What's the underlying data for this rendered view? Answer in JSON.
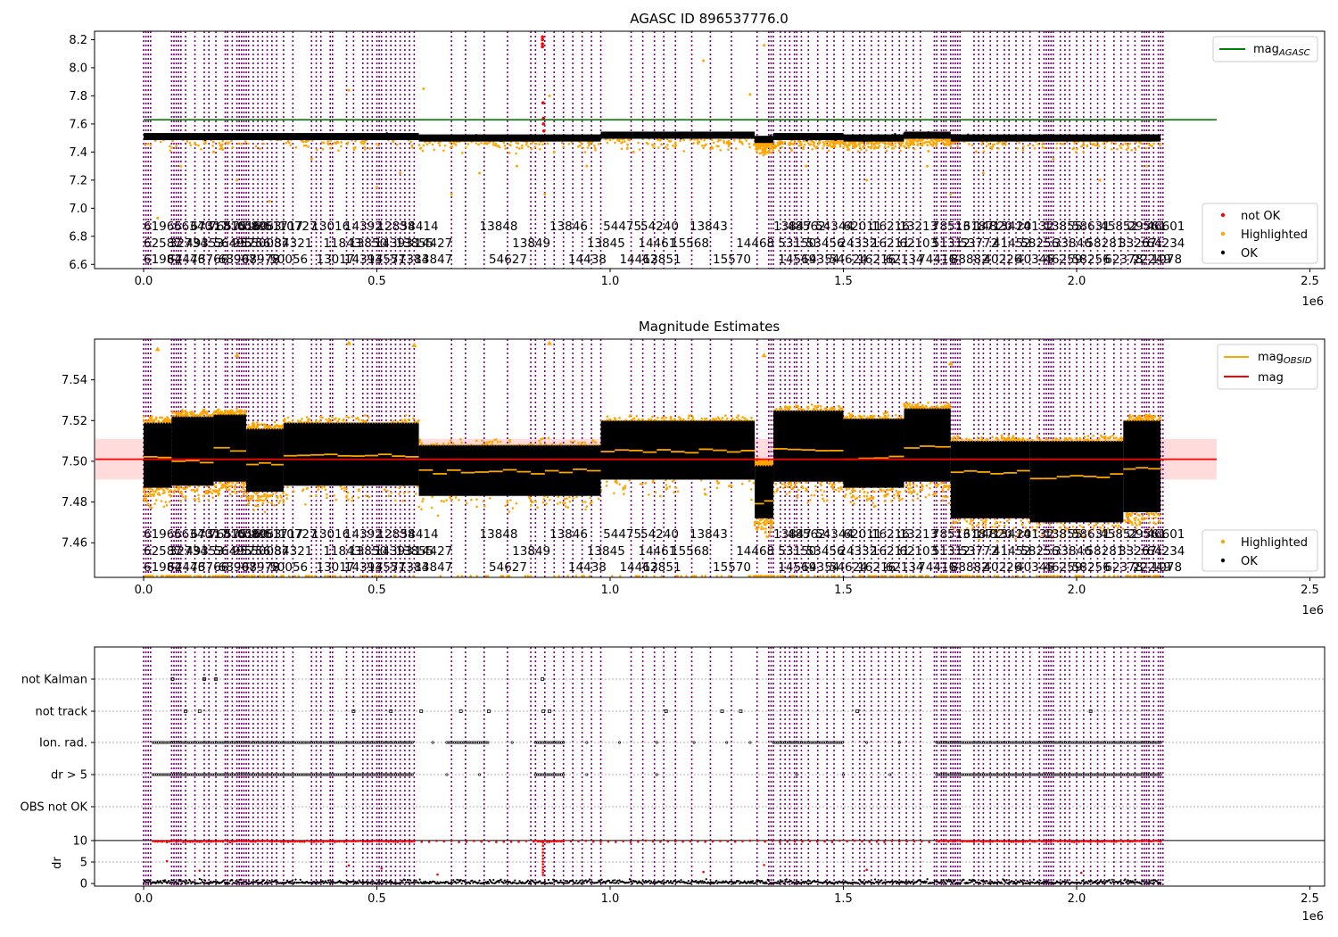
{
  "figure": {
    "colors": {
      "obs_line": "#800080",
      "not_ok": "#ff0000",
      "highlighted": "#ffa500",
      "ok": "#000000",
      "agasc_line": "#008000",
      "mag_line": "#ff0000",
      "mag_obsid_line": "#ffa500",
      "band_fill": "#ffcccc"
    },
    "obs_lines_x": [
      0.0,
      0.005,
      0.01,
      0.015,
      0.06,
      0.065,
      0.07,
      0.075,
      0.08,
      0.09,
      0.11,
      0.13,
      0.14,
      0.155,
      0.175,
      0.18,
      0.19,
      0.2,
      0.205,
      0.21,
      0.215,
      0.22,
      0.225,
      0.235,
      0.245,
      0.255,
      0.265,
      0.275,
      0.285,
      0.3,
      0.32,
      0.36,
      0.37,
      0.38,
      0.4,
      0.405,
      0.435,
      0.45,
      0.47,
      0.48,
      0.49,
      0.5,
      0.505,
      0.51,
      0.52,
      0.53,
      0.54,
      0.55,
      0.56,
      0.57,
      0.58,
      0.66,
      0.69,
      0.73,
      0.78,
      0.83,
      0.84,
      0.86,
      0.88,
      0.9,
      0.92,
      0.94,
      0.96,
      0.98,
      1.045,
      1.07,
      1.095,
      1.115,
      1.14,
      1.175,
      1.215,
      1.26,
      1.315,
      1.34,
      1.345,
      1.35,
      1.365,
      1.375,
      1.385,
      1.395,
      1.4,
      1.41,
      1.425,
      1.445,
      1.465,
      1.48,
      1.5,
      1.52,
      1.535,
      1.545,
      1.56,
      1.575,
      1.59,
      1.605,
      1.62,
      1.635,
      1.65,
      1.665,
      1.695,
      1.7,
      1.71,
      1.715,
      1.72,
      1.73,
      1.735,
      1.74,
      1.745,
      1.75,
      1.78,
      1.79,
      1.8,
      1.815,
      1.83,
      1.845,
      1.855,
      1.87,
      1.885,
      1.9,
      1.92,
      1.93,
      1.935,
      1.94,
      1.945,
      1.95,
      1.965,
      1.975,
      1.985,
      2.0,
      2.015,
      2.03,
      2.045,
      2.06,
      2.08,
      2.095,
      2.11,
      2.125,
      2.14,
      2.145,
      2.15,
      2.155,
      2.165,
      2.175,
      2.18,
      2.185
    ]
  },
  "obs_labels": {
    "row1": [
      {
        "x": 0.0,
        "t": "61965"
      },
      {
        "x": 0.065,
        "t": "66340"
      },
      {
        "x": 0.1,
        "t": "67317"
      },
      {
        "x": 0.14,
        "t": "76575"
      },
      {
        "x": 0.17,
        "t": "81016"
      },
      {
        "x": 0.2,
        "t": "6560"
      },
      {
        "x": 0.23,
        "t": "8963"
      },
      {
        "x": 0.26,
        "t": "51717"
      },
      {
        "x": 0.29,
        "t": "10727"
      },
      {
        "x": 0.36,
        "t": "13016"
      },
      {
        "x": 0.43,
        "t": "14392"
      },
      {
        "x": 0.5,
        "t": "12838"
      },
      {
        "x": 0.55,
        "t": "54414"
      },
      {
        "x": 0.72,
        "t": "13848"
      },
      {
        "x": 0.87,
        "t": "13846"
      },
      {
        "x": 0.985,
        "t": "54475"
      },
      {
        "x": 1.065,
        "t": "54240"
      },
      {
        "x": 1.17,
        "t": "13843"
      },
      {
        "x": 1.35,
        "t": "13847"
      },
      {
        "x": 1.38,
        "t": "48562"
      },
      {
        "x": 1.44,
        "t": "54344"
      },
      {
        "x": 1.5,
        "t": "62011"
      },
      {
        "x": 1.56,
        "t": "16216"
      },
      {
        "x": 1.62,
        "t": "13213"
      },
      {
        "x": 1.69,
        "t": "78513"
      },
      {
        "x": 1.74,
        "t": "16187"
      },
      {
        "x": 1.78,
        "t": "14820"
      },
      {
        "x": 1.82,
        "t": "13414"
      },
      {
        "x": 1.87,
        "t": "20132"
      },
      {
        "x": 1.93,
        "t": "13855"
      },
      {
        "x": 1.99,
        "t": "58631"
      },
      {
        "x": 2.05,
        "t": "45852"
      },
      {
        "x": 2.11,
        "t": "29561"
      },
      {
        "x": 2.15,
        "t": "46601"
      }
    ],
    "row2": [
      {
        "x": 0.0,
        "t": "62587"
      },
      {
        "x": 0.055,
        "t": "32734"
      },
      {
        "x": 0.09,
        "t": "49353"
      },
      {
        "x": 0.15,
        "t": "56495"
      },
      {
        "x": 0.19,
        "t": "95756"
      },
      {
        "x": 0.23,
        "t": "50087"
      },
      {
        "x": 0.28,
        "t": "34321"
      },
      {
        "x": 0.385,
        "t": "11843"
      },
      {
        "x": 0.44,
        "t": "13850"
      },
      {
        "x": 0.495,
        "t": "14393"
      },
      {
        "x": 0.54,
        "t": "13855"
      },
      {
        "x": 0.58,
        "t": "14427"
      },
      {
        "x": 0.79,
        "t": "13849"
      },
      {
        "x": 0.95,
        "t": "13845"
      },
      {
        "x": 1.06,
        "t": "14461"
      },
      {
        "x": 1.13,
        "t": "15568"
      },
      {
        "x": 1.27,
        "t": "14468"
      },
      {
        "x": 1.36,
        "t": "53150"
      },
      {
        "x": 1.42,
        "t": "53456"
      },
      {
        "x": 1.49,
        "t": "24332"
      },
      {
        "x": 1.56,
        "t": "16211"
      },
      {
        "x": 1.62,
        "t": "62103"
      },
      {
        "x": 1.69,
        "t": "51312"
      },
      {
        "x": 1.75,
        "t": "53772"
      },
      {
        "x": 1.82,
        "t": "41452"
      },
      {
        "x": 1.88,
        "t": "58256"
      },
      {
        "x": 1.95,
        "t": "33846"
      },
      {
        "x": 2.02,
        "t": "58281"
      },
      {
        "x": 2.09,
        "t": "33267"
      },
      {
        "x": 2.15,
        "t": "64234"
      }
    ],
    "row3": [
      {
        "x": 0.0,
        "t": "61984"
      },
      {
        "x": 0.05,
        "t": "62446"
      },
      {
        "x": 0.1,
        "t": "73766"
      },
      {
        "x": 0.16,
        "t": "68907"
      },
      {
        "x": 0.21,
        "t": "68978"
      },
      {
        "x": 0.27,
        "t": "50056"
      },
      {
        "x": 0.37,
        "t": "13017"
      },
      {
        "x": 0.43,
        "t": "14393"
      },
      {
        "x": 0.48,
        "t": "14557"
      },
      {
        "x": 0.53,
        "t": "71384"
      },
      {
        "x": 0.58,
        "t": "13847"
      },
      {
        "x": 0.74,
        "t": "54627"
      },
      {
        "x": 0.91,
        "t": "14438"
      },
      {
        "x": 1.02,
        "t": "14462"
      },
      {
        "x": 1.07,
        "t": "13851"
      },
      {
        "x": 1.22,
        "t": "15570"
      },
      {
        "x": 1.36,
        "t": "14569"
      },
      {
        "x": 1.41,
        "t": "14354"
      },
      {
        "x": 1.47,
        "t": "54624"
      },
      {
        "x": 1.53,
        "t": "16216"
      },
      {
        "x": 1.59,
        "t": "62134"
      },
      {
        "x": 1.66,
        "t": "74416"
      },
      {
        "x": 1.73,
        "t": "88882"
      },
      {
        "x": 1.8,
        "t": "40226"
      },
      {
        "x": 1.87,
        "t": "40345"
      },
      {
        "x": 1.93,
        "t": "46259"
      },
      {
        "x": 1.99,
        "t": "58256"
      },
      {
        "x": 2.06,
        "t": "62378"
      },
      {
        "x": 2.12,
        "t": "22249"
      },
      {
        "x": 2.16,
        "t": "1078"
      }
    ]
  },
  "chart_data": [
    {
      "type": "scatter",
      "title": "AGASC ID 896537776.0",
      "xlabel": "",
      "ylabel": "",
      "x_offset_text": "1e6",
      "xlim": [
        -0.11,
        2.53
      ],
      "ylim": [
        6.57,
        8.26
      ],
      "xticks": [
        0.0,
        0.5,
        1.0,
        1.5,
        2.0,
        2.5
      ],
      "xtick_labels": [
        "0.0",
        "0.5",
        "1.0",
        "1.5",
        "2.0",
        "2.5"
      ],
      "yticks": [
        6.6,
        6.8,
        7.0,
        7.2,
        7.4,
        7.6,
        7.8,
        8.0,
        8.2
      ],
      "ytick_labels": [
        "6.6",
        "6.8",
        "7.0",
        "7.2",
        "7.4",
        "7.6",
        "7.8",
        "8.0",
        "8.2"
      ],
      "lines": [
        {
          "name": "mag_AGASC",
          "x": [
            0.0,
            2.3
          ],
          "y": [
            7.63,
            7.63
          ]
        }
      ],
      "series": [
        {
          "name": "not OK",
          "x": [
            0.855,
            0.855,
            0.855,
            0.855,
            0.856,
            0.857,
            0.857,
            0.858
          ],
          "y": [
            8.22,
            8.2,
            8.17,
            8.15,
            7.75,
            7.64,
            7.6,
            7.55
          ]
        },
        {
          "name": "Highlighted",
          "x": [
            0.03,
            0.08,
            0.15,
            0.2,
            0.27,
            0.36,
            0.44,
            0.5,
            0.55,
            0.6,
            0.66,
            0.72,
            0.8,
            0.86,
            0.87,
            0.88,
            0.95,
            1.05,
            1.2,
            1.3,
            1.33,
            1.42,
            1.55,
            1.68,
            1.73,
            1.8,
            1.95,
            2.05,
            2.15
          ],
          "y": [
            6.93,
            7.3,
            7.4,
            7.2,
            7.05,
            7.35,
            7.84,
            7.15,
            7.25,
            7.85,
            7.1,
            7.25,
            7.3,
            7.1,
            7.8,
            7.4,
            7.3,
            7.4,
            8.05,
            7.81,
            8.16,
            7.3,
            7.2,
            7.3,
            7.1,
            7.25,
            7.35,
            7.2,
            7.3
          ]
        },
        {
          "name": "OK",
          "segments": [
            {
              "x": [
                0.0,
                0.59
              ],
              "y": 7.51
            },
            {
              "x": [
                0.59,
                0.98
              ],
              "y": 7.5
            },
            {
              "x": [
                0.98,
                1.31
              ],
              "y": 7.52
            },
            {
              "x": [
                1.31,
                1.35
              ],
              "y": 7.49
            },
            {
              "x": [
                1.35,
                1.5
              ],
              "y": 7.51
            },
            {
              "x": [
                1.5,
                1.63
              ],
              "y": 7.5
            },
            {
              "x": [
                1.63,
                1.73
              ],
              "y": 7.52
            },
            {
              "x": [
                1.73,
                2.18
              ],
              "y": 7.5
            }
          ]
        }
      ],
      "legend_upper": [
        "mag_AGASC"
      ],
      "legend_lower": [
        "not OK",
        "Highlighted",
        "OK"
      ],
      "legend_placement": "upper right / lower right"
    },
    {
      "type": "line",
      "title": "Magnitude Estimates",
      "xlabel": "",
      "ylabel": "",
      "x_offset_text": "1e6",
      "xlim": [
        -0.11,
        2.53
      ],
      "ylim": [
        7.443,
        7.56
      ],
      "xticks": [
        0.0,
        0.5,
        1.0,
        1.5,
        2.0,
        2.5
      ],
      "xtick_labels": [
        "0.0",
        "0.5",
        "1.0",
        "1.5",
        "2.0",
        "2.5"
      ],
      "yticks": [
        7.46,
        7.48,
        7.5,
        7.52,
        7.54
      ],
      "ytick_labels": [
        "7.46",
        "7.48",
        "7.50",
        "7.52",
        "7.54"
      ],
      "mag": {
        "name": "mag",
        "y": 7.501,
        "band": [
          7.491,
          7.511
        ],
        "x": [
          -0.11,
          2.3
        ]
      },
      "mag_obsid_segments": [
        {
          "x": [
            0.0,
            0.06
          ],
          "y": 7.502,
          "lo": 7.487,
          "hi": 7.519
        },
        {
          "x": [
            0.06,
            0.15
          ],
          "y": 7.5,
          "lo": 7.488,
          "hi": 7.522
        },
        {
          "x": [
            0.15,
            0.22
          ],
          "y": 7.506,
          "lo": 7.49,
          "hi": 7.523
        },
        {
          "x": [
            0.22,
            0.3
          ],
          "y": 7.499,
          "lo": 7.485,
          "hi": 7.516
        },
        {
          "x": [
            0.3,
            0.59
          ],
          "y": 7.503,
          "lo": 7.488,
          "hi": 7.519
        },
        {
          "x": [
            0.59,
            0.98
          ],
          "y": 7.495,
          "lo": 7.483,
          "hi": 7.508
        },
        {
          "x": [
            0.98,
            1.31
          ],
          "y": 7.505,
          "lo": 7.491,
          "hi": 7.52
        },
        {
          "x": [
            1.31,
            1.35
          ],
          "y": 7.48,
          "lo": 7.472,
          "hi": 7.498
        },
        {
          "x": [
            1.35,
            1.5
          ],
          "y": 7.506,
          "lo": 7.49,
          "hi": 7.525
        },
        {
          "x": [
            1.5,
            1.63
          ],
          "y": 7.502,
          "lo": 7.487,
          "hi": 7.521
        },
        {
          "x": [
            1.63,
            1.73
          ],
          "y": 7.507,
          "lo": 7.49,
          "hi": 7.526
        },
        {
          "x": [
            1.73,
            1.9
          ],
          "y": 7.495,
          "lo": 7.472,
          "hi": 7.51
        },
        {
          "x": [
            1.9,
            2.1
          ],
          "y": 7.492,
          "lo": 7.47,
          "hi": 7.51
        },
        {
          "x": [
            2.1,
            2.18
          ],
          "y": 7.497,
          "lo": 7.475,
          "hi": 7.52
        }
      ],
      "highlighted_extra": {
        "x": [
          0.03,
          0.2,
          0.44,
          0.58,
          0.87,
          1.33,
          1.73
        ],
        "y": [
          7.555,
          7.552,
          7.558,
          7.557,
          7.558,
          7.552,
          7.548
        ]
      },
      "legend_upper": [
        "mag_OBSID",
        "mag"
      ],
      "legend_lower": [
        "Highlighted",
        "OK"
      ],
      "legend_placement": "upper right / lower right"
    },
    {
      "type": "scatter",
      "title": "",
      "xlabel": "",
      "ylabel": "",
      "x_offset_text": "1e6",
      "xlim": [
        -0.11,
        2.53
      ],
      "yticks": [
        "not Kalman",
        "not track",
        "Ion. rad.",
        "dr > 5",
        "OBS not OK"
      ],
      "flags": [
        {
          "name": "not Kalman",
          "x": [
            0.062,
            0.13,
            0.155,
            0.855
          ]
        },
        {
          "name": "not track",
          "x": [
            0.09,
            0.12,
            0.45,
            0.53,
            0.595,
            0.68,
            0.74,
            0.857,
            0.87,
            1.12,
            1.24,
            1.28,
            1.53,
            2.03
          ]
        },
        {
          "name": "Ion. rad.",
          "dense": [
            [
              0.02,
              0.58
            ],
            [
              0.65,
              0.74
            ],
            [
              0.84,
              0.9
            ],
            [
              1.35,
              1.5
            ],
            [
              1.7,
              2.18
            ]
          ],
          "sparse": [
            0.62,
            0.79,
            0.95,
            1.02,
            1.1,
            1.18,
            1.25,
            1.3,
            1.55,
            1.62
          ]
        },
        {
          "name": "dr > 5",
          "dense": [
            [
              0.02,
              0.58
            ],
            [
              0.84,
              0.9
            ],
            [
              1.7,
              2.18
            ]
          ],
          "sparse": [
            0.65,
            0.72,
            0.95,
            1.1,
            1.4,
            1.5,
            1.6
          ]
        }
      ]
    },
    {
      "type": "scatter",
      "title": "",
      "xlabel": "",
      "ylabel": "dr",
      "x_offset_text": "",
      "xlim": [
        -0.11,
        2.53
      ],
      "ylim": [
        -0.6,
        10.4
      ],
      "yticks": [
        0,
        5,
        10
      ],
      "ytick_labels": [
        "0",
        "5",
        "10"
      ],
      "xticks": [
        0.0,
        0.5,
        1.0,
        1.5,
        2.0,
        2.5
      ],
      "xtick_labels": [
        "0.0",
        "0.5",
        "1.0",
        "1.5",
        "2.0",
        "2.5"
      ],
      "hline": 10,
      "red_band": {
        "y": 9.8,
        "dense": [
          [
            0.02,
            0.58
          ],
          [
            0.84,
            0.9
          ],
          [
            1.7,
            2.18
          ]
        ],
        "sparse_ranges": [
          [
            0.58,
            0.84
          ],
          [
            0.9,
            1.7
          ]
        ]
      },
      "red_spike": {
        "x": 0.856,
        "y": [
          9.5,
          8.8,
          8.0,
          7.2,
          6.5,
          5.8,
          5.1,
          4.5,
          3.8,
          3.2,
          2.6,
          2.0
        ]
      },
      "red_sparse_low": {
        "x": [
          0.05,
          0.12,
          0.44,
          0.51,
          0.63,
          1.2,
          1.33,
          1.55,
          2.01
        ],
        "y": [
          5.2,
          3.0,
          4.2,
          3.5,
          2.1,
          2.7,
          4.3,
          3.2,
          2.5
        ]
      },
      "black_base": {
        "x": [
          0.0,
          2.18
        ],
        "y": [
          0.1,
          1.2
        ]
      }
    }
  ]
}
